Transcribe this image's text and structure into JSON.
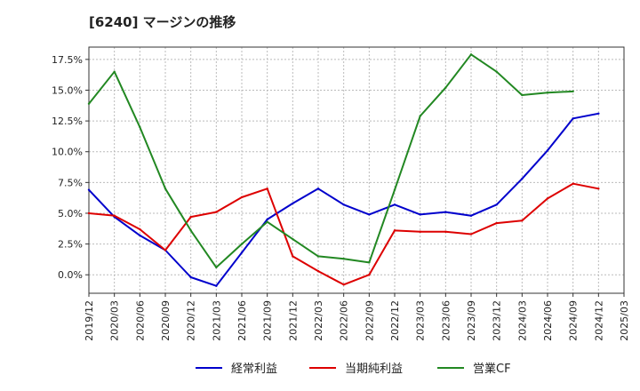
{
  "chart_data": {
    "type": "line",
    "title": "[6240]  マージンの推移",
    "xlabel": "",
    "ylabel": "",
    "x": [
      "2019/12",
      "2020/03",
      "2020/06",
      "2020/09",
      "2020/12",
      "2021/03",
      "2021/06",
      "2021/09",
      "2021/12",
      "2022/03",
      "2022/06",
      "2022/09",
      "2022/12",
      "2023/03",
      "2023/06",
      "2023/09",
      "2023/12",
      "2024/03",
      "2024/06",
      "2024/09",
      "2024/12",
      "2025/03"
    ],
    "ylim": [
      -1.5,
      18.5
    ],
    "yticks": [
      0.0,
      2.5,
      5.0,
      7.5,
      10.0,
      12.5,
      15.0,
      17.5
    ],
    "ytick_labels": [
      "0.0%",
      "2.5%",
      "5.0%",
      "7.5%",
      "10.0%",
      "12.5%",
      "15.0%",
      "17.5%"
    ],
    "grid": true,
    "legend_position": "bottom-center",
    "series": [
      {
        "name": "経常利益",
        "color": "#0000cc",
        "values": [
          6.9,
          4.7,
          3.2,
          2.0,
          -0.2,
          -0.9,
          1.8,
          4.5,
          5.8,
          7.0,
          5.7,
          4.9,
          5.7,
          4.9,
          5.1,
          4.8,
          5.7,
          7.8,
          10.1,
          12.7,
          13.1,
          null
        ]
      },
      {
        "name": "当期純利益",
        "color": "#dd0000",
        "values": [
          5.0,
          4.8,
          3.7,
          2.0,
          4.7,
          5.1,
          6.3,
          7.0,
          1.5,
          0.3,
          -0.8,
          0.0,
          3.6,
          3.5,
          3.5,
          3.3,
          4.2,
          4.4,
          6.2,
          7.4,
          7.0,
          null
        ]
      },
      {
        "name": "営業CF",
        "color": "#228822",
        "values": [
          13.9,
          16.5,
          12.0,
          7.0,
          3.6,
          0.6,
          2.5,
          4.3,
          2.9,
          1.5,
          1.3,
          1.0,
          6.9,
          12.9,
          15.2,
          17.9,
          16.5,
          14.6,
          14.8,
          14.9,
          null,
          null
        ]
      }
    ]
  }
}
